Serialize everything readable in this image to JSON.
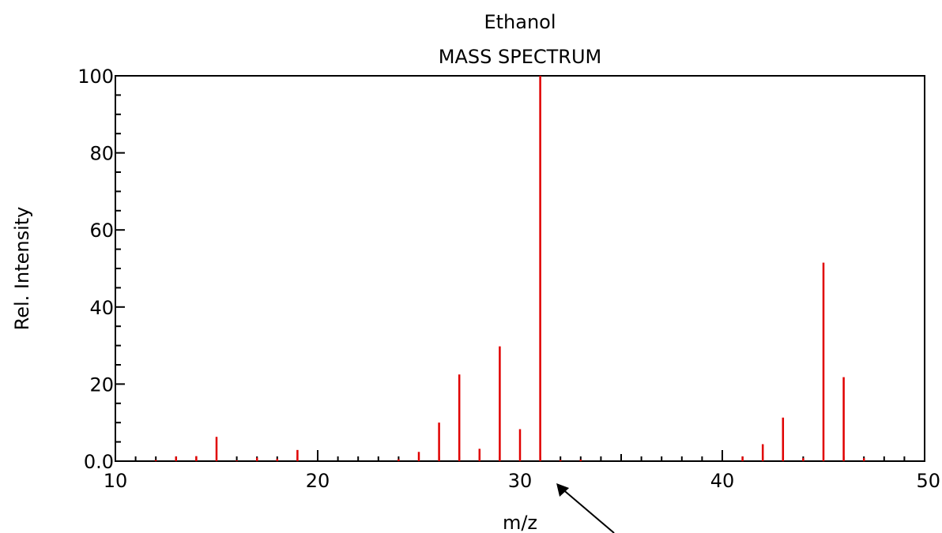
{
  "chart_data": {
    "type": "bar",
    "title": "Ethanol",
    "subtitle": "MASS SPECTRUM",
    "xlabel": "m/z",
    "ylabel": "Rel. Intensity",
    "xlim": [
      10,
      50
    ],
    "ylim": [
      0,
      100
    ],
    "x_ticks": [
      10,
      20,
      30,
      40,
      50
    ],
    "y_ticks": [
      0,
      20,
      40,
      60,
      80,
      100
    ],
    "y_tick_labels": [
      "0.0",
      "20",
      "40",
      "60",
      "80",
      "100"
    ],
    "x_tick_labels": [
      "10",
      "20",
      "30",
      "40",
      "50"
    ],
    "grid": false,
    "bar_color": "#e00000",
    "annotation": {
      "type": "arrow",
      "points_to_x": 31.8
    },
    "peaks": [
      {
        "mz": 12,
        "intensity": 0.3
      },
      {
        "mz": 13,
        "intensity": 1.2
      },
      {
        "mz": 14,
        "intensity": 1.3
      },
      {
        "mz": 15,
        "intensity": 6.3
      },
      {
        "mz": 16,
        "intensity": 0.2
      },
      {
        "mz": 17,
        "intensity": 0.9
      },
      {
        "mz": 18,
        "intensity": 0.6
      },
      {
        "mz": 19,
        "intensity": 2.9
      },
      {
        "mz": 24,
        "intensity": 0.5
      },
      {
        "mz": 25,
        "intensity": 2.4
      },
      {
        "mz": 26,
        "intensity": 10.0
      },
      {
        "mz": 27,
        "intensity": 22.5
      },
      {
        "mz": 28,
        "intensity": 3.2
      },
      {
        "mz": 29,
        "intensity": 29.8
      },
      {
        "mz": 30,
        "intensity": 8.3
      },
      {
        "mz": 31,
        "intensity": 100.0
      },
      {
        "mz": 32,
        "intensity": 0.3
      },
      {
        "mz": 33,
        "intensity": 0.4
      },
      {
        "mz": 41,
        "intensity": 1.2
      },
      {
        "mz": 42,
        "intensity": 4.4
      },
      {
        "mz": 43,
        "intensity": 11.3
      },
      {
        "mz": 44,
        "intensity": 0.8
      },
      {
        "mz": 45,
        "intensity": 51.5
      },
      {
        "mz": 46,
        "intensity": 21.8
      },
      {
        "mz": 47,
        "intensity": 0.8
      }
    ]
  }
}
